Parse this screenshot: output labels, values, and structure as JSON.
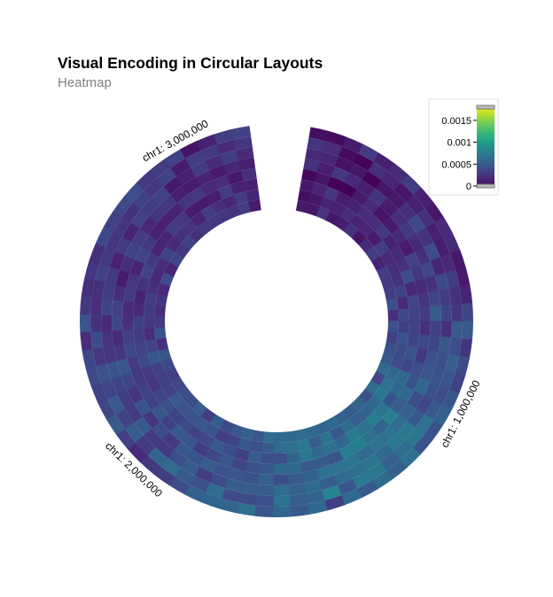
{
  "title": "Visual Encoding in Circular Layouts",
  "subtitle": "Heatmap",
  "chart_data": {
    "type": "heatmap",
    "layout": "circular",
    "chromosome": "chr1",
    "genome_range": [
      0,
      3200000
    ],
    "angular_gap": true,
    "axis_ticks": [
      {
        "value": 1000000,
        "label": "chr1: 1,000,000"
      },
      {
        "value": 2000000,
        "label": "chr1: 2,000,000"
      },
      {
        "value": 3000000,
        "label": "chr1: 3,000,000"
      }
    ],
    "n_bins": 64,
    "n_rows": 8,
    "color_scale": {
      "scheme": "viridis",
      "domain": [
        0,
        0.0018
      ],
      "legend_ticks": [
        "0.0015",
        "0.001",
        "0.0005",
        "0"
      ],
      "legend_tick_values": [
        0.0015,
        0.001,
        0.0005,
        0
      ]
    },
    "values": [
      [
        7e-05,
        6e-05,
        0.00014,
        0.00031,
        0.00016,
        0.00022,
        0.00032,
        0.00017,
        0.00012,
        0.00021,
        0.00022,
        0.00012,
        0.00013,
        0.00018,
        0.00038,
        0.0005,
        0.00028,
        0.00041,
        0.00035,
        0.00048,
        0.00055,
        0.00046,
        0.00046,
        0.00067,
        0.00054,
        0.00062,
        0.0005,
        0.00061,
        0.00034,
        0.00061,
        0.0005,
        0.00058,
        0.00048,
        0.00066,
        0.00058,
        0.00058,
        0.00055,
        0.00041,
        0.00034,
        0.0003,
        0.00022,
        0.00034,
        0.00051,
        0.00038,
        0.00036,
        0.00041,
        0.00039,
        0.00023,
        0.00048,
        0.0003,
        0.00024,
        0.00028,
        0.00024,
        0.0004,
        0.00036,
        0.0004,
        0.00042,
        0.0003,
        0.00032,
        0.00035,
        0.0001,
        0.00016,
        0.00034,
        0.00036
      ],
      [
        0.00028,
        0.00023,
        5e-05,
        2e-05,
        0.00024,
        0.00019,
        0.00011,
        0.00016,
        0.00026,
        0.00016,
        0.00015,
        0.00021,
        0.00032,
        0.00025,
        0.00027,
        0.00051,
        0.00042,
        0.00054,
        0.00048,
        0.00041,
        0.00051,
        0.00068,
        0.00072,
        0.00063,
        0.00055,
        0.00072,
        0.00074,
        0.00048,
        0.00082,
        0.00057,
        0.00053,
        0.00067,
        0.00044,
        0.00041,
        0.00041,
        0.00063,
        0.00044,
        0.00051,
        0.00062,
        0.00058,
        0.00031,
        0.00052,
        0.00035,
        0.0005,
        0.00038,
        0.00045,
        0.00029,
        0.00041,
        0.00026,
        0.00023,
        0.00025,
        0.00035,
        0.0003,
        0.00027,
        0.00029,
        0.00026,
        0.00035,
        0.00029,
        0.00036,
        0.00014,
        0.00032,
        0.0003,
        0.00021,
        0.00028
      ],
      [
        0.0002,
        0.00019,
        8e-05,
        0.00012,
        1e-05,
        0.00011,
        0.00013,
        0.00024,
        0.0004,
        0.00026,
        0.00042,
        0.00019,
        0.0004,
        0.00033,
        0.00038,
        0.00025,
        0.00049,
        0.00044,
        0.00045,
        0.00046,
        0.00039,
        0.0005,
        0.00072,
        0.00073,
        0.0006,
        0.00071,
        0.00065,
        0.00062,
        0.00053,
        0.00062,
        0.00056,
        0.00063,
        0.00053,
        0.00053,
        0.00053,
        0.00043,
        0.00033,
        0.00052,
        0.00042,
        0.00031,
        0.00031,
        0.00051,
        0.00032,
        0.00032,
        0.00038,
        0.00047,
        0.00027,
        0.00027,
        0.00022,
        0.00037,
        0.00032,
        0.00031,
        0.00017,
        0.00031,
        0.00018,
        0.00035,
        0.00032,
        0.00035,
        0.00012,
        0.00016,
        0.00031,
        0.00021,
        0.00032,
        0.00021
      ],
      [
        0.00024,
        0.00015,
        0.00029,
        0.0002,
        0.00015,
        0.00028,
        0.00014,
        0.00025,
        0.00031,
        0.00021,
        0.00025,
        0.00039,
        0.00026,
        0.00038,
        0.00052,
        0.00035,
        0.00038,
        0.00046,
        0.00048,
        0.0006,
        0.00043,
        0.00057,
        0.00063,
        0.00068,
        0.00068,
        0.00061,
        0.0007,
        0.00068,
        0.00067,
        0.00055,
        0.00052,
        0.00043,
        0.00056,
        0.00046,
        0.00048,
        0.00046,
        0.00053,
        0.00047,
        0.00049,
        0.0003,
        0.00043,
        0.00029,
        0.00047,
        0.00028,
        0.00038,
        0.00048,
        0.00029,
        0.00022,
        0.00039,
        0.00036,
        0.00023,
        0.00013,
        0.00024,
        0.00036,
        0.00032,
        0.0002,
        0.00029,
        0.00029,
        0.00016,
        0.00014,
        0.00018,
        0.00013,
        0.00019,
        0.00015
      ],
      [
        3e-05,
        0.00011,
        1e-05,
        1e-05,
        0.00014,
        0.00022,
        0.0001,
        0.00013,
        0.00022,
        0.00013,
        0.00035,
        0.0003,
        0.00021,
        0.00027,
        0.00033,
        0.00025,
        0.0004,
        0.0003,
        0.00042,
        0.00046,
        0.00061,
        0.00053,
        0.00079,
        0.00057,
        0.00065,
        0.00078,
        0.00076,
        0.00047,
        0.00052,
        0.0005,
        0.00061,
        0.0006,
        0.00049,
        0.00045,
        0.00038,
        0.00048,
        0.00039,
        0.00032,
        0.00048,
        0.0005,
        0.00036,
        0.00049,
        0.00036,
        0.00036,
        0.0003,
        0.00031,
        0.0004,
        0.00034,
        0.00024,
        0.00021,
        0.00031,
        0.00029,
        0.00018,
        0.00038,
        0.0003,
        0.00017,
        0.00017,
        0.00018,
        0.00027,
        0.00029,
        0.00021,
        0.00023,
        0.00012,
        0.00025
      ],
      [
        0.00012,
        0.00018,
        0.00028,
        0.00014,
        0.00017,
        0.00023,
        0.00023,
        0.0003,
        0.00017,
        0.00022,
        0.00025,
        0.00043,
        0.0002,
        0.00038,
        0.00036,
        0.00035,
        0.00036,
        0.00047,
        0.00038,
        0.00061,
        0.0006,
        0.00047,
        0.00071,
        0.00075,
        0.00067,
        0.00075,
        0.00061,
        0.00067,
        0.0006,
        0.00071,
        0.00057,
        0.00043,
        0.00043,
        0.00053,
        0.00034,
        0.00043,
        0.0005,
        0.0004,
        0.00037,
        0.0004,
        0.00036,
        0.00044,
        0.00039,
        0.00029,
        0.00031,
        0.0004,
        0.00036,
        0.00032,
        0.00034,
        0.00021,
        0.00017,
        0.00026,
        0.00037,
        0.0003,
        0.00018,
        0.00019,
        0.00032,
        0.00029,
        0.00014,
        0.00014,
        0.00015,
        0.00032,
        0.00017,
        0.00016
      ],
      [
        7e-05,
        0.00012,
        0.00018,
        0.00016,
        0.00024,
        0.00018,
        0.0002,
        0.00014,
        0.00033,
        0.00022,
        0.00023,
        0.00026,
        0.00035,
        0.00021,
        0.0004,
        0.00034,
        0.00046,
        0.00041,
        0.00041,
        0.00059,
        0.00067,
        0.00072,
        0.0006,
        0.00057,
        0.00055,
        0.00064,
        0.00049,
        0.00069,
        0.00053,
        0.00072,
        0.00066,
        0.00063,
        0.00052,
        0.00044,
        0.00049,
        0.00037,
        0.00033,
        0.00046,
        0.00049,
        0.00046,
        0.00045,
        0.0005,
        0.00035,
        0.00034,
        0.00036,
        0.00049,
        0.00037,
        0.00023,
        0.0003,
        0.0003,
        0.00033,
        0.00024,
        0.0002,
        0.00023,
        0.00036,
        0.00022,
        0.00025,
        0.00027,
        0.00018,
        0.00033,
        0.00024,
        0.00019,
        0.00032,
        0.00019
      ],
      [
        0.00013,
        0.00012,
        0.00027,
        0.00012,
        0.00015,
        0.00026,
        0.0001,
        0.00022,
        0.00033,
        0.00017,
        0.00032,
        0.0003,
        0.00032,
        0.00046,
        0.00024,
        0.00045,
        0.00035,
        0.00043,
        0.00049,
        0.00062,
        0.00039,
        0.00064,
        0.00045,
        0.00058,
        0.00052,
        0.00056,
        0.0006,
        0.00057,
        0.0006,
        0.00064,
        0.00061,
        0.00061,
        0.00064,
        0.00048,
        0.00057,
        0.00049,
        0.0004,
        0.00052,
        0.00032,
        0.00053,
        0.00043,
        0.00043,
        0.00039,
        0.00034,
        0.0004,
        0.00047,
        0.00024,
        0.00047,
        0.00031,
        0.00023,
        0.00029,
        0.00021,
        0.0004,
        0.00018,
        0.00038,
        0.00028,
        0.00036,
        0.00025,
        0.0003,
        0.0003,
        0.00028,
        0.00026,
        0.00032,
        0.00013
      ]
    ]
  }
}
